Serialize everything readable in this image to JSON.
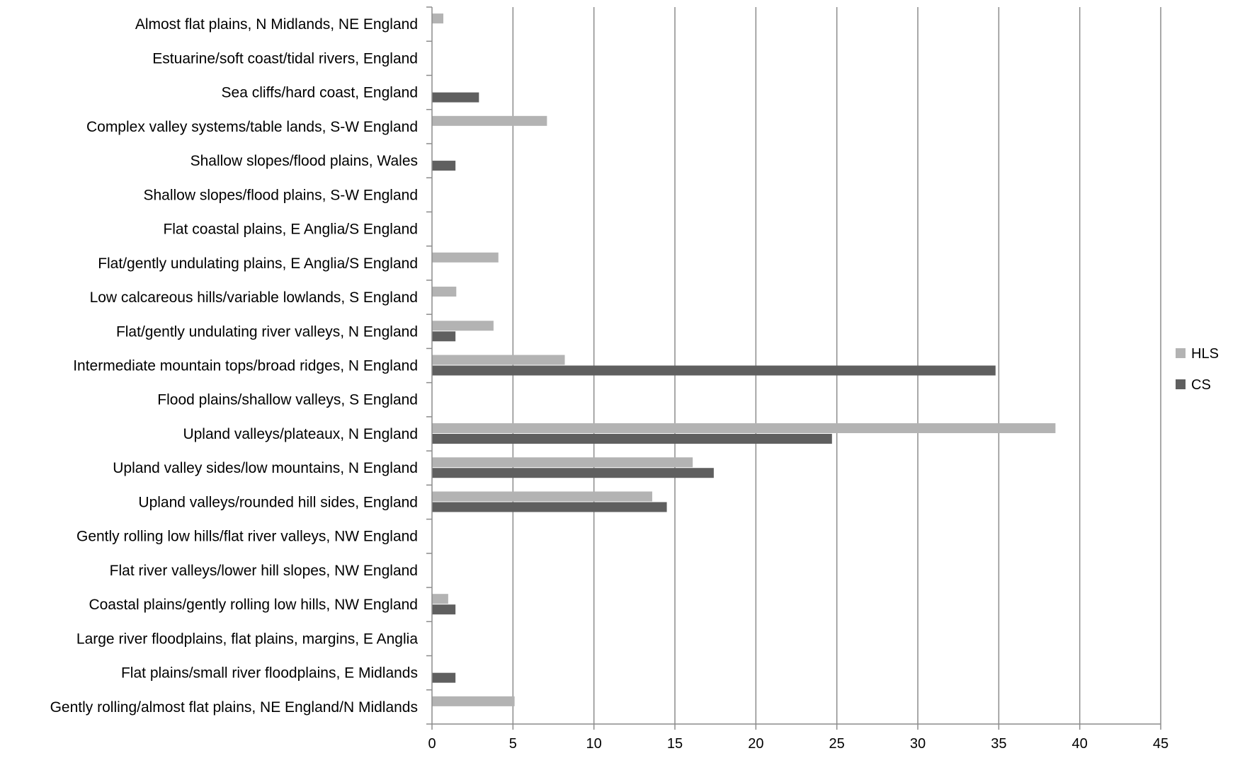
{
  "chart_data": {
    "type": "bar",
    "orientation": "horizontal",
    "title": "",
    "xlabel": "",
    "ylabel": "",
    "xlim": [
      0,
      45
    ],
    "x_ticks": [
      "0",
      "5",
      "10",
      "15",
      "20",
      "25",
      "30",
      "35",
      "40",
      "45"
    ],
    "grid": "vertical",
    "legend": {
      "position": "right"
    },
    "categories": [
      "Almost flat plains, N Midlands, NE England",
      "Estuarine/soft coast/tidal rivers, England",
      "Sea cliffs/hard coast, England",
      "Complex valley systems/table lands, S-W England",
      "Shallow slopes/flood plains, Wales",
      "Shallow slopes/flood plains, S-W England",
      "Flat coastal plains, E Anglia/S England",
      "Flat/gently undulating plains, E Anglia/S England",
      "Low calcareous hills/variable lowlands, S England",
      "Flat/gently undulating river valleys, N England",
      "Intermediate mountain tops/broad ridges, N England",
      "Flood plains/shallow valleys, S England",
      "Upland  valleys/plateaux, N England",
      "Upland valley sides/low mountains, N England",
      "Upland valleys/rounded hill sides, England",
      "Gently rolling low hills/flat river valleys, NW England",
      "Flat river valleys/lower hill slopes, NW England",
      "Coastal plains/gently rolling low hills, NW England",
      "Large river floodplains, flat plains, margins, E Anglia",
      "Flat plains/small river floodplains, E Midlands",
      "Gently rolling/almost flat plains, NE England/N Midlands"
    ],
    "series": [
      {
        "name": "HLS",
        "color": "#b3b3b3",
        "values": [
          0.7,
          0,
          0,
          7.1,
          0,
          0,
          0,
          4.1,
          1.5,
          3.8,
          8.2,
          0,
          38.5,
          16.1,
          13.6,
          0,
          0,
          1.0,
          0,
          0,
          5.1
        ]
      },
      {
        "name": "CS",
        "color": "#5f5f5f",
        "values": [
          0,
          0,
          2.9,
          0,
          1.45,
          0,
          0,
          0,
          0,
          1.45,
          34.8,
          0,
          24.7,
          17.4,
          14.5,
          0,
          0,
          1.45,
          0,
          1.45,
          0
        ]
      }
    ]
  }
}
